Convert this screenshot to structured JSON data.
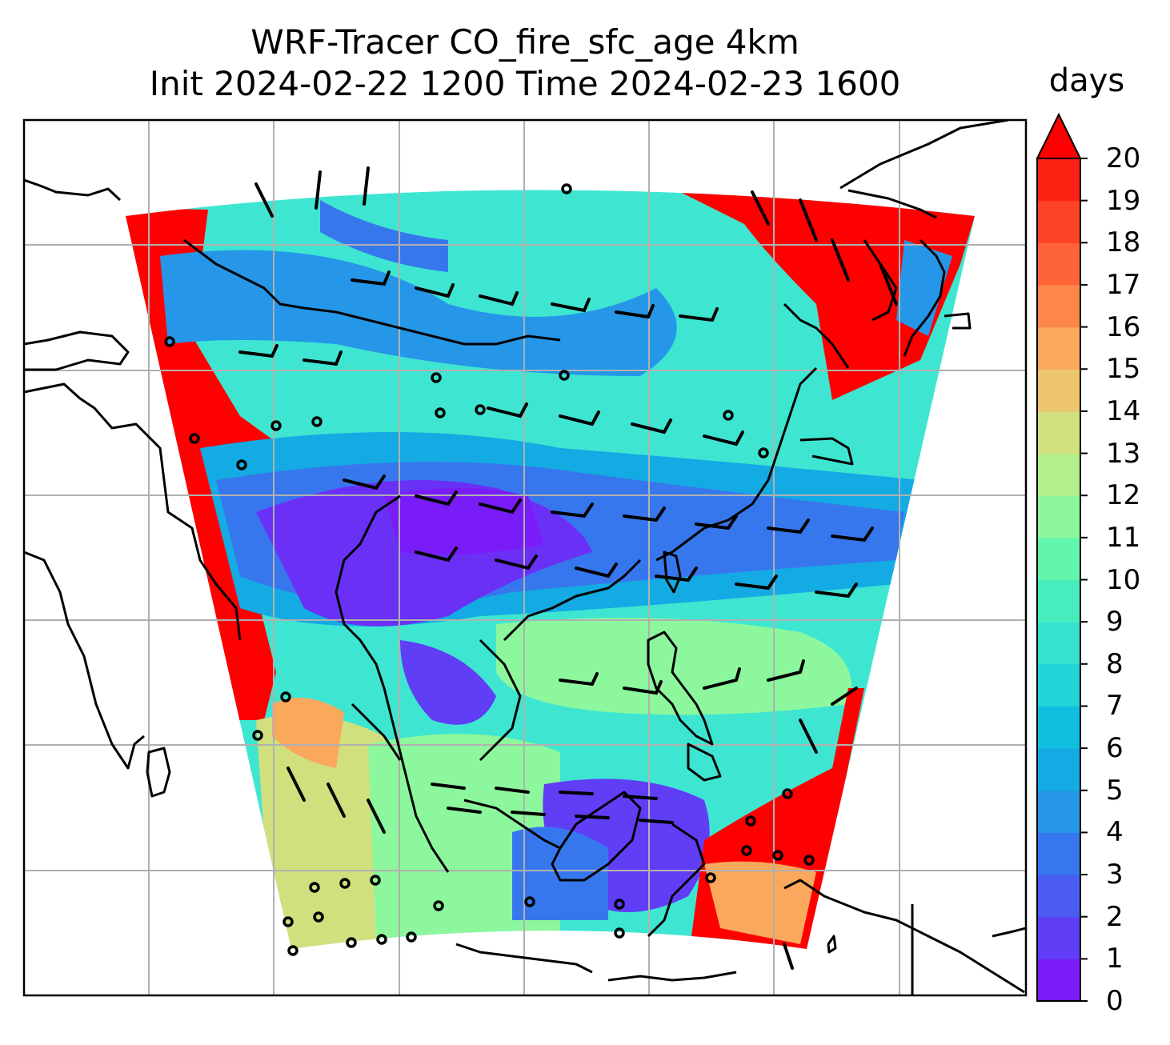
{
  "title_line1": "WRF-Tracer CO_fire_sfc_age 4km",
  "title_line2": "Init 2024-02-22 1200 Time 2024-02-23 1600",
  "colorbar": {
    "unit_label": "days",
    "min": 0,
    "max": 20,
    "extend": "max",
    "ticks": [
      "0",
      "1",
      "2",
      "3",
      "4",
      "5",
      "6",
      "7",
      "8",
      "9",
      "10",
      "11",
      "12",
      "13",
      "14",
      "15",
      "16",
      "17",
      "18",
      "19",
      "20"
    ],
    "colors": [
      "#7a1cf8",
      "#5f3ef6",
      "#4a5cf2",
      "#3777ee",
      "#2596e8",
      "#14aae3",
      "#10bfe0",
      "#22d3d8",
      "#35e2cd",
      "#48edbe",
      "#62f5ac",
      "#8cf79d",
      "#b1f08d",
      "#d1e07d",
      "#ecc56e",
      "#f9a85c",
      "#fd874a",
      "#fe6438",
      "#fe4226",
      "#fe2214"
    ],
    "extend_color": "#ff0000"
  },
  "map": {
    "projection": "Lambert conformal",
    "gridlines": true,
    "coastlines": true,
    "wind_barbs": true,
    "colors": {
      "old_air": "#ff0000",
      "cyan_mid": "#3ee6d2",
      "blue_band": "#2596e8",
      "purple_core": "#6a30f6",
      "green_south": "#8cf5a0",
      "yellow_south": "#d2e482",
      "orange_patch": "#f8a45c",
      "grid": "#b0b0b0"
    }
  }
}
